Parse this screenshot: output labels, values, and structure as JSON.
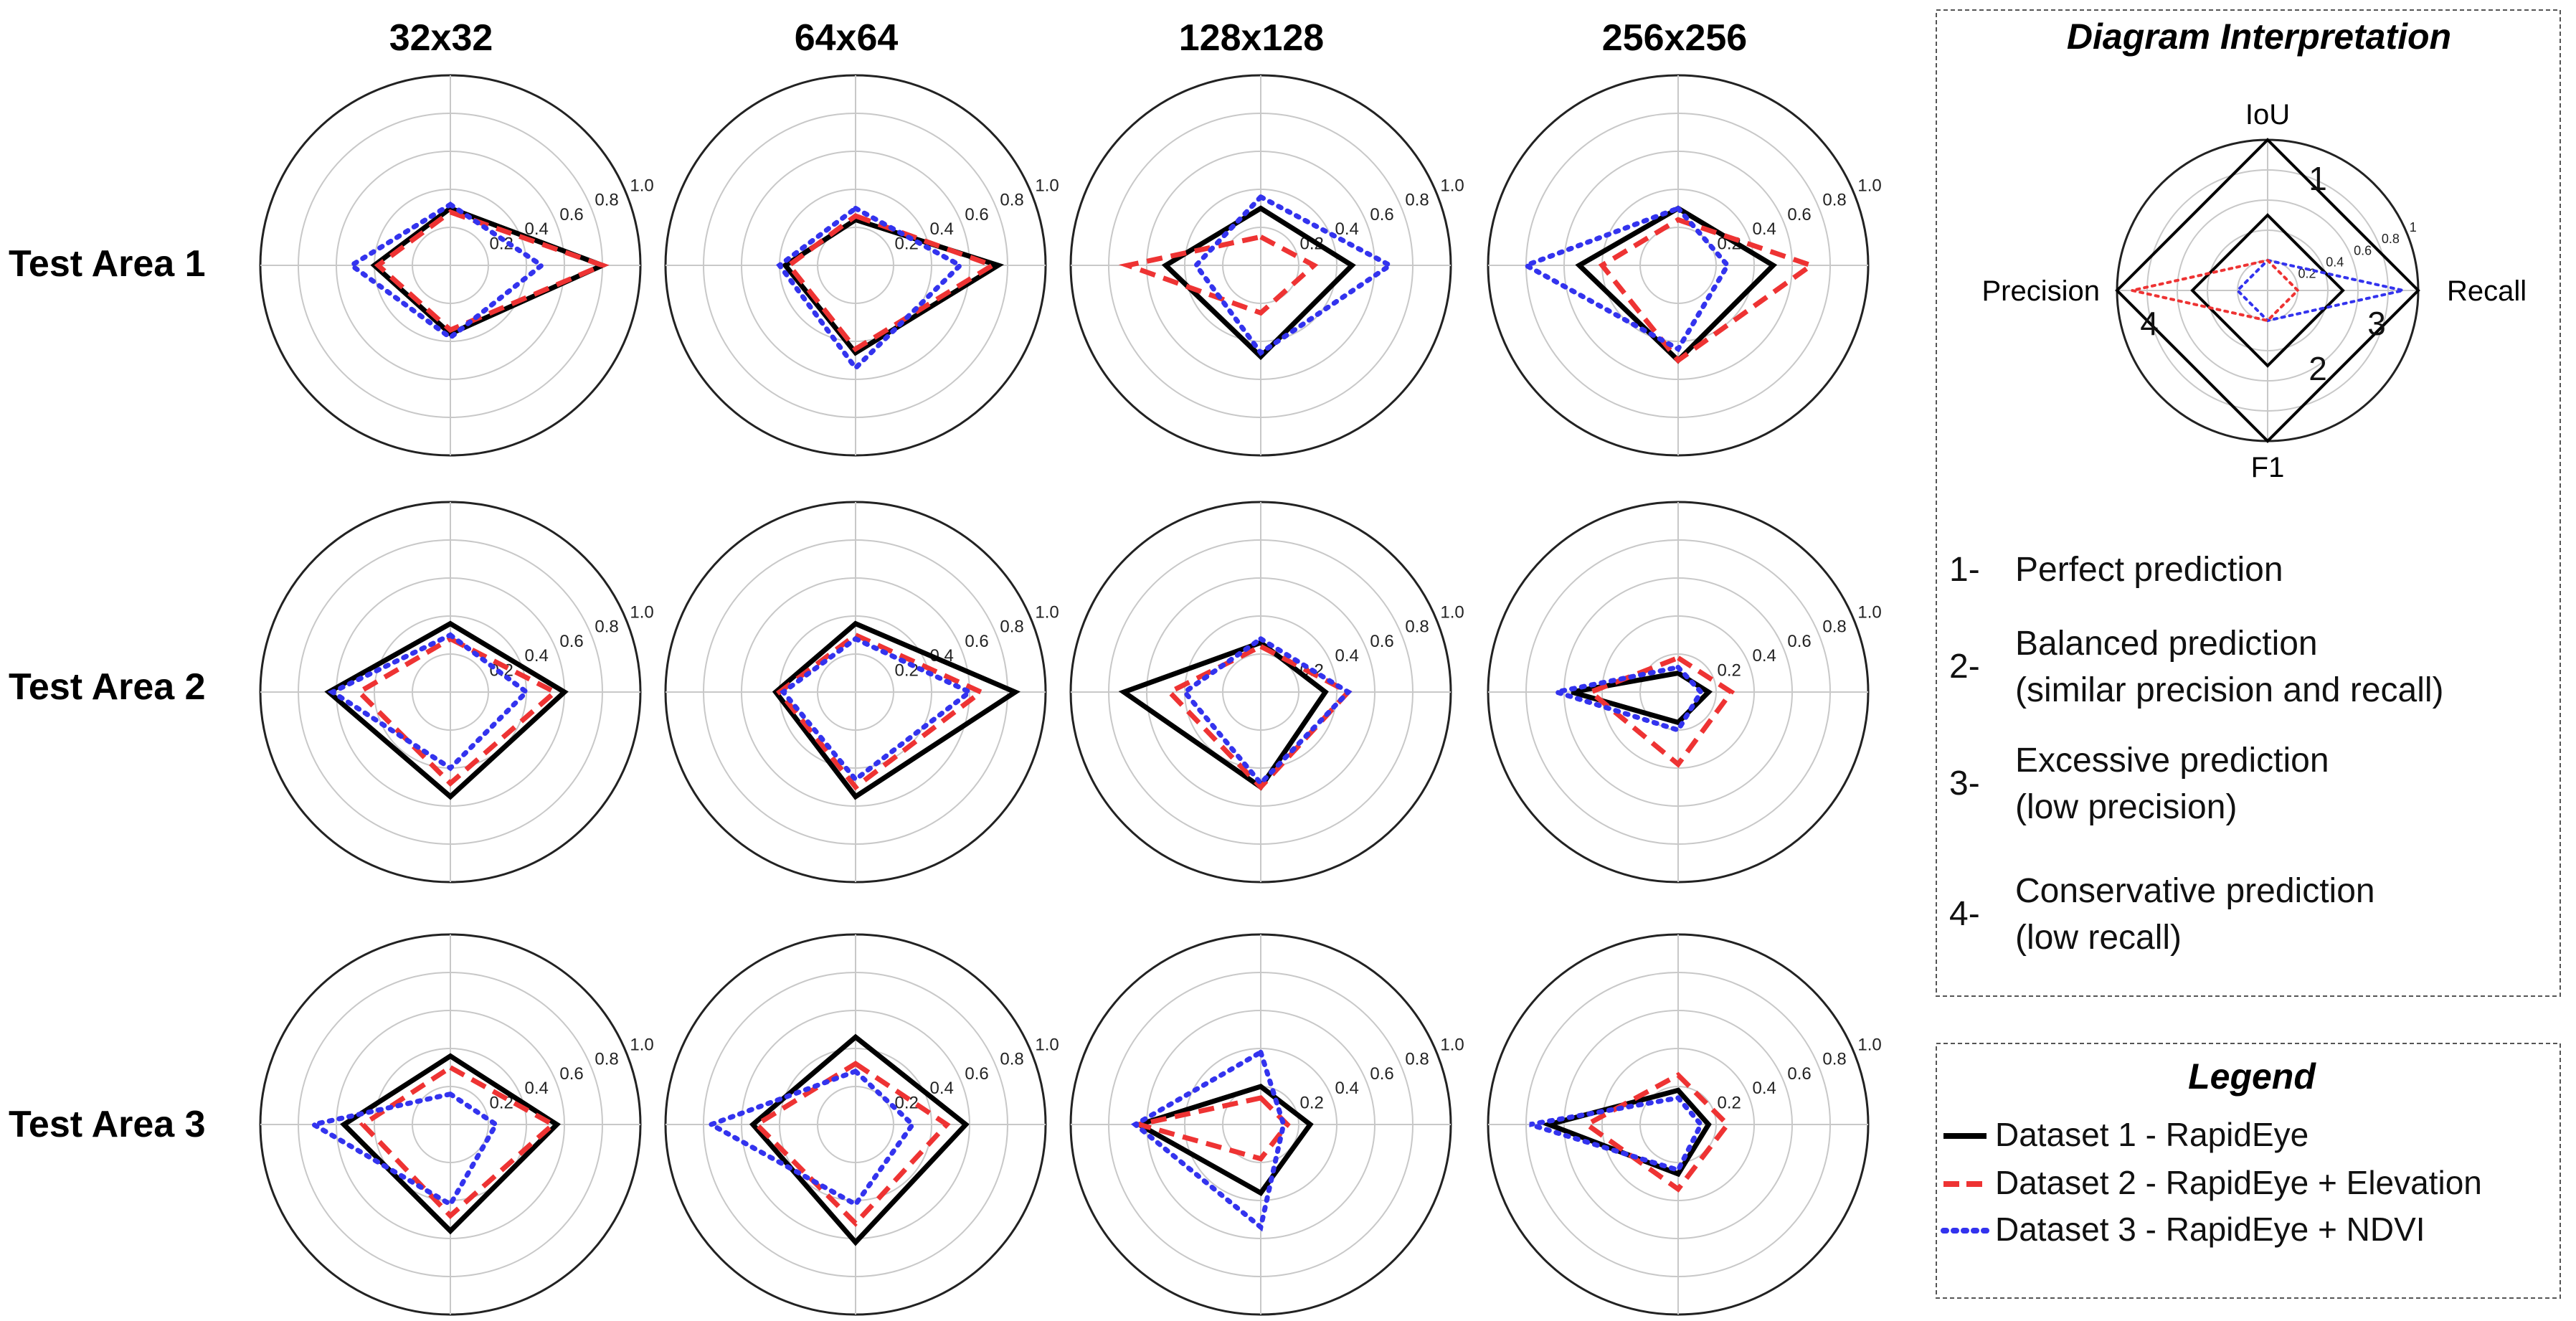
{
  "chart_data": {
    "type": "radar",
    "axes": [
      "IoU",
      "Recall",
      "F1",
      "Precision"
    ],
    "radial_ticks": [
      "0.2",
      "0.4",
      "0.6",
      "0.8",
      "1.0"
    ],
    "rlim": [
      0,
      1
    ],
    "column_titles": [
      "32x32",
      "64x64",
      "128x128",
      "256x256"
    ],
    "row_titles": [
      "Test Area 1",
      "Test Area 2",
      "Test Area 3"
    ],
    "panels": [
      [
        {
          "d1": [
            0.3,
            0.8,
            0.36,
            0.4
          ],
          "d2": [
            0.28,
            0.8,
            0.34,
            0.38
          ],
          "d3": [
            0.32,
            0.48,
            0.38,
            0.52
          ]
        },
        {
          "d1": [
            0.24,
            0.75,
            0.46,
            0.37
          ],
          "d2": [
            0.26,
            0.72,
            0.44,
            0.35
          ],
          "d3": [
            0.3,
            0.55,
            0.54,
            0.4
          ]
        },
        {
          "d1": [
            0.3,
            0.48,
            0.48,
            0.5
          ],
          "d2": [
            0.15,
            0.28,
            0.25,
            0.7
          ],
          "d3": [
            0.36,
            0.68,
            0.46,
            0.34
          ]
        },
        {
          "d1": [
            0.3,
            0.5,
            0.5,
            0.52
          ],
          "d2": [
            0.24,
            0.7,
            0.5,
            0.4
          ],
          "d3": [
            0.3,
            0.26,
            0.44,
            0.8
          ]
        }
      ],
      [
        {
          "d1": [
            0.36,
            0.6,
            0.55,
            0.64
          ],
          "d2": [
            0.28,
            0.55,
            0.48,
            0.48
          ],
          "d3": [
            0.3,
            0.4,
            0.4,
            0.62
          ]
        },
        {
          "d1": [
            0.36,
            0.84,
            0.55,
            0.42
          ],
          "d2": [
            0.3,
            0.66,
            0.5,
            0.4
          ],
          "d3": [
            0.28,
            0.6,
            0.46,
            0.38
          ]
        },
        {
          "d1": [
            0.26,
            0.34,
            0.5,
            0.72
          ],
          "d2": [
            0.24,
            0.46,
            0.5,
            0.48
          ],
          "d3": [
            0.28,
            0.46,
            0.48,
            0.4
          ]
        },
        {
          "d1": [
            0.1,
            0.16,
            0.16,
            0.56
          ],
          "d2": [
            0.18,
            0.28,
            0.38,
            0.46
          ],
          "d3": [
            0.13,
            0.12,
            0.2,
            0.64
          ]
        }
      ],
      [
        {
          "d1": [
            0.36,
            0.56,
            0.56,
            0.56
          ],
          "d2": [
            0.3,
            0.54,
            0.48,
            0.46
          ],
          "d3": [
            0.16,
            0.24,
            0.42,
            0.72
          ]
        },
        {
          "d1": [
            0.46,
            0.58,
            0.62,
            0.54
          ],
          "d2": [
            0.32,
            0.48,
            0.52,
            0.52
          ],
          "d3": [
            0.28,
            0.3,
            0.42,
            0.76
          ]
        },
        {
          "d1": [
            0.2,
            0.26,
            0.36,
            0.64
          ],
          "d2": [
            0.14,
            0.14,
            0.18,
            0.64
          ],
          "d3": [
            0.38,
            0.12,
            0.54,
            0.66
          ]
        },
        {
          "d1": [
            0.18,
            0.16,
            0.26,
            0.68
          ],
          "d2": [
            0.26,
            0.26,
            0.34,
            0.48
          ],
          "d3": [
            0.14,
            0.12,
            0.24,
            0.78
          ]
        }
      ]
    ],
    "series": [
      {
        "key": "d1",
        "name": "Dataset 1 - RapidEye",
        "color": "#000000",
        "style": "solid"
      },
      {
        "key": "d2",
        "name": "Dataset 2 - RapidEye + Elevation",
        "color": "#ee3333",
        "style": "dashed"
      },
      {
        "key": "d3",
        "name": "Dataset 3 - RapidEye + NDVI",
        "color": "#3333ee",
        "style": "dotted"
      }
    ]
  },
  "interpretation": {
    "title": "Diagram Interpretation",
    "axes": [
      "IoU",
      "Recall",
      "F1",
      "Precision"
    ],
    "ticks": [
      "0.2",
      "0.4",
      "0.6",
      "0.8",
      "1"
    ],
    "shape_numbers": [
      "1",
      "2",
      "3",
      "4"
    ],
    "shapes": {
      "perfect": [
        1,
        1,
        1,
        1
      ],
      "balanced": [
        0.5,
        0.5,
        0.5,
        0.5
      ],
      "excessive": [
        0.2,
        0.9,
        0.2,
        0.2
      ],
      "conservative": [
        0.2,
        0.2,
        0.2,
        0.9
      ]
    },
    "items": [
      {
        "num": "1-",
        "lines": [
          "Perfect prediction"
        ]
      },
      {
        "num": "2-",
        "lines": [
          "Balanced prediction",
          "(similar precision and recall)"
        ]
      },
      {
        "num": "3-",
        "lines": [
          "Excessive prediction",
          "(low precision)"
        ]
      },
      {
        "num": "4-",
        "lines": [
          "Conservative prediction",
          "(low recall)"
        ]
      }
    ]
  },
  "legend": {
    "title": "Legend",
    "entries": [
      "Dataset 1 - RapidEye",
      "Dataset 2 - RapidEye + Elevation",
      "Dataset 3 - RapidEye + NDVI"
    ]
  }
}
